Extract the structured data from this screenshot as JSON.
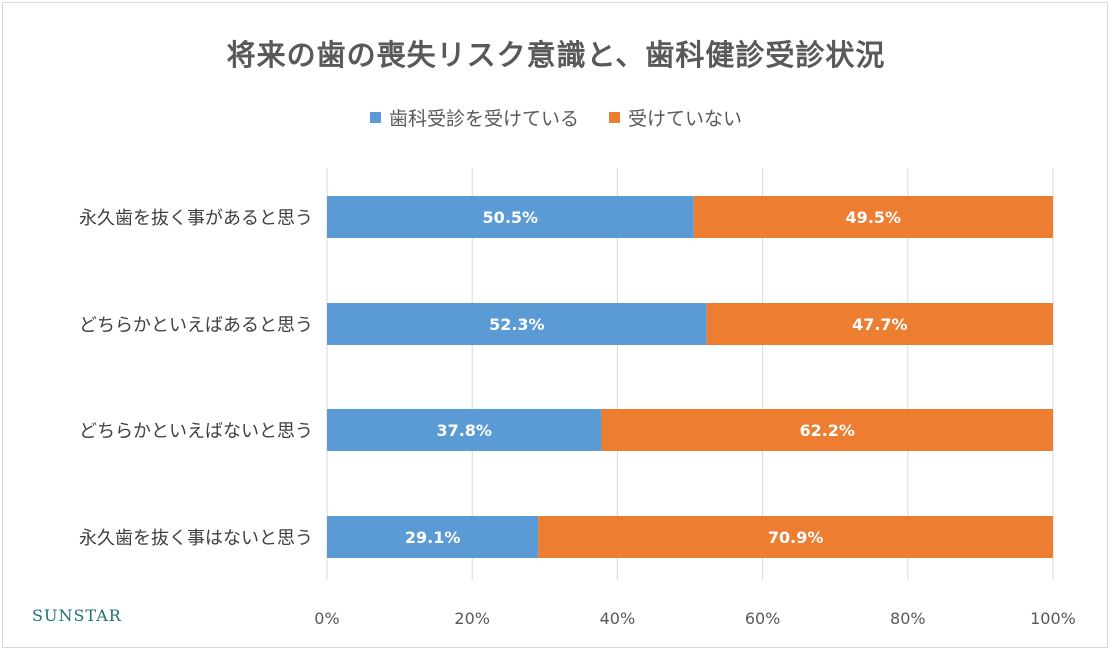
{
  "chart_data": {
    "type": "bar",
    "orientation": "horizontal",
    "stacked": true,
    "percent_stacked": true,
    "title": "将来の歯の喪失リスク意識と、歯科健診受診状況",
    "categories": [
      "永久歯を抜く事があると思う",
      "どちらかといえばあると思う",
      "どちらかといえばないと思う",
      "永久歯を抜く事はないと思う"
    ],
    "series": [
      {
        "name": "歯科受診を受けている",
        "color": "#5b9bd5",
        "values": [
          50.5,
          52.3,
          37.8,
          29.1
        ],
        "labels": [
          "50.5%",
          "52.3%",
          "37.8%",
          "29.1%"
        ]
      },
      {
        "name": "受けていない",
        "color": "#ed7d31",
        "values": [
          49.5,
          47.7,
          62.2,
          70.9
        ],
        "labels": [
          "49.5%",
          "47.7%",
          "62.2%",
          "70.9%"
        ]
      }
    ],
    "xlim": [
      0,
      100
    ],
    "xticks": [
      0,
      20,
      40,
      60,
      80,
      100
    ],
    "xtick_labels": [
      "0%",
      "20%",
      "40%",
      "60%",
      "80%",
      "100%"
    ],
    "grid": true,
    "legend_position": "top"
  },
  "brand": "SUNSTAR"
}
